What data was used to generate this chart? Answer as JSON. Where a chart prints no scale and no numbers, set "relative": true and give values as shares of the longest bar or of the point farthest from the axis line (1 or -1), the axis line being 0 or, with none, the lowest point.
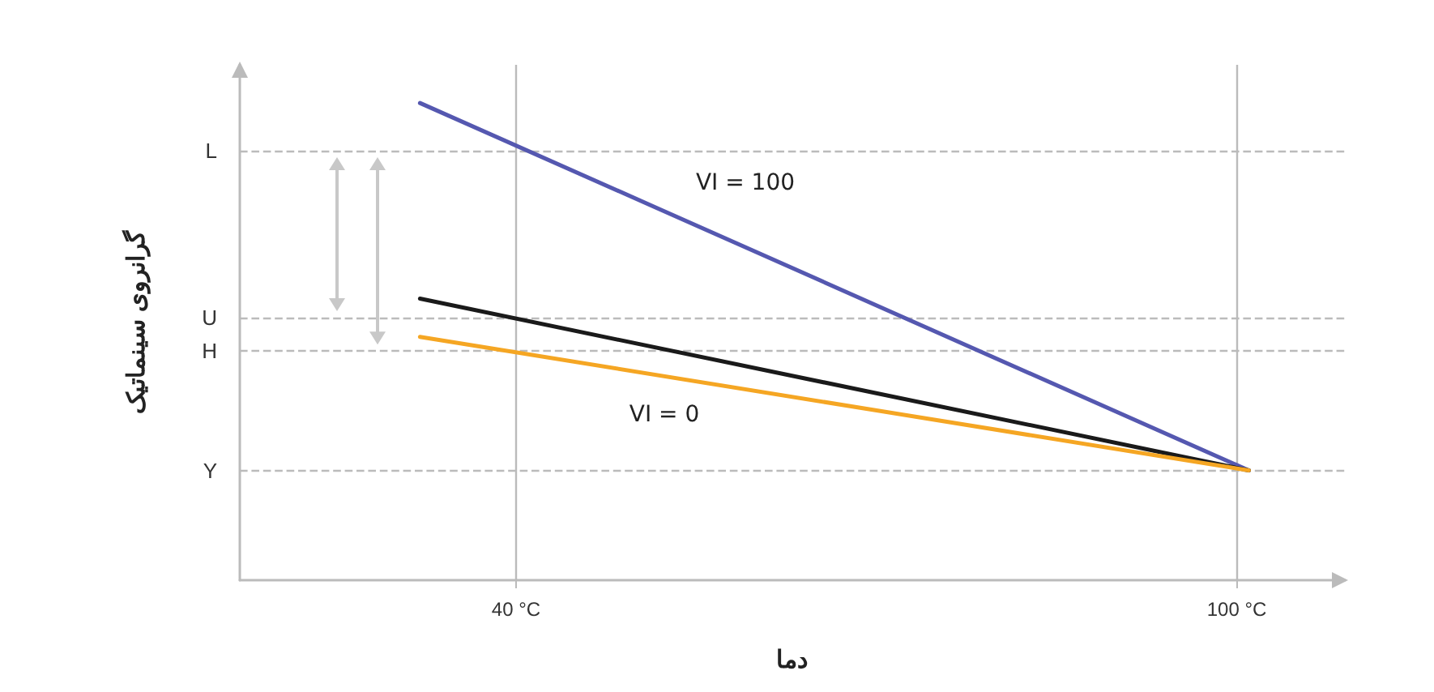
{
  "chart_data": {
    "type": "line",
    "relative": true,
    "xlabel": "دما",
    "ylabel": "گرانروی سینماتیک",
    "xlim": [
      17,
      109
    ],
    "xticks": [
      {
        "value": 40,
        "label": "40 °C"
      },
      {
        "value": 100,
        "label": "100 °C"
      }
    ],
    "x": [
      32,
      101
    ],
    "series": [
      {
        "color": "#5558b0",
        "values": [
          1,
          0.23
        ]
      },
      {
        "color": "#1a1a1a",
        "values": [
          0.59,
          0.23
        ]
      },
      {
        "color": "#f5a623",
        "values": [
          0.51,
          0.23
        ]
      }
    ],
    "ref_lines": [
      {
        "axis": "y",
        "value": 0.9,
        "label": "L",
        "color": "#bbbbbb",
        "line_style": "dashed"
      },
      {
        "axis": "y",
        "value": 0.55,
        "label": "U",
        "color": "#bbbbbb",
        "line_style": "dashed"
      },
      {
        "axis": "y",
        "value": 0.48,
        "label": "H",
        "color": "#bbbbbb",
        "line_style": "dashed"
      },
      {
        "axis": "y",
        "value": 0.23,
        "label": "Y",
        "color": "#bbbbbb",
        "line_style": "dashed"
      },
      {
        "axis": "x",
        "value": 40,
        "color": "#bbbbbb",
        "line_style": "solid"
      },
      {
        "axis": "x",
        "value": 100,
        "color": "#bbbbbb",
        "line_style": "solid"
      }
    ],
    "annotations": [
      "VI = 100",
      "VI = 0"
    ],
    "grid": false,
    "marker": "none",
    "line_style": "solid"
  }
}
